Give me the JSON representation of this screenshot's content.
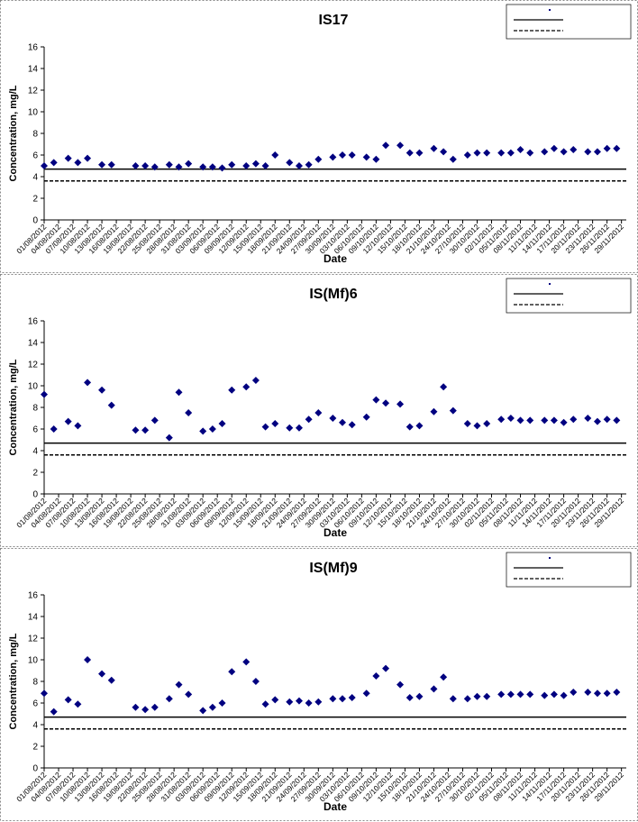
{
  "chart_data": [
    {
      "type": "scatter",
      "title": "IS17",
      "xlabel": "Date",
      "ylabel": "Concentration, mg/L",
      "marker": "diamond",
      "xlim": [
        "01/08/2012",
        "30/11/2012"
      ],
      "ylim": [
        0,
        16
      ],
      "yticks": [
        0,
        2,
        4,
        6,
        8,
        10,
        12,
        14,
        16
      ],
      "xticks": [
        "01/08/2012",
        "04/08/2012",
        "07/08/2012",
        "10/08/2012",
        "13/08/2012",
        "16/08/2012",
        "19/08/2012",
        "22/08/2012",
        "25/08/2012",
        "28/08/2012",
        "31/08/2012",
        "03/09/2012",
        "06/09/2012",
        "09/09/2012",
        "12/09/2012",
        "15/09/2012",
        "18/09/2012",
        "21/09/2012",
        "24/09/2012",
        "27/09/2012",
        "30/09/2012",
        "03/10/2012",
        "06/10/2012",
        "09/10/2012",
        "12/10/2012",
        "15/10/2012",
        "18/10/2012",
        "21/10/2012",
        "24/10/2012",
        "27/10/2012",
        "30/10/2012",
        "02/11/2012",
        "05/11/2012",
        "08/11/2012",
        "11/11/2012",
        "14/11/2012",
        "17/11/2012",
        "20/11/2012",
        "23/11/2012",
        "26/11/2012",
        "29/11/2012"
      ],
      "x": [
        "01/08/2012",
        "03/08/2012",
        "06/08/2012",
        "08/08/2012",
        "10/08/2012",
        "13/08/2012",
        "15/08/2012",
        "20/08/2012",
        "22/08/2012",
        "24/08/2012",
        "27/08/2012",
        "29/08/2012",
        "31/08/2012",
        "03/09/2012",
        "05/09/2012",
        "07/09/2012",
        "09/09/2012",
        "12/09/2012",
        "14/09/2012",
        "16/09/2012",
        "18/09/2012",
        "21/09/2012",
        "23/09/2012",
        "25/09/2012",
        "27/09/2012",
        "30/09/2012",
        "02/10/2012",
        "04/10/2012",
        "07/10/2012",
        "09/10/2012",
        "11/10/2012",
        "14/10/2012",
        "16/10/2012",
        "18/10/2012",
        "21/10/2012",
        "23/10/2012",
        "25/10/2012",
        "28/10/2012",
        "30/10/2012",
        "01/11/2012",
        "04/11/2012",
        "06/11/2012",
        "08/11/2012",
        "10/11/2012",
        "13/11/2012",
        "15/11/2012",
        "17/11/2012",
        "19/11/2012",
        "22/11/2012",
        "24/11/2012",
        "26/11/2012",
        "28/11/2012"
      ],
      "series": [
        {
          "color": "#000080",
          "values": [
            5.0,
            5.3,
            5.7,
            5.3,
            5.7,
            5.1,
            5.1,
            5.0,
            5.0,
            4.9,
            5.1,
            4.9,
            5.2,
            4.9,
            4.9,
            4.8,
            5.1,
            5.0,
            5.2,
            5.0,
            6.0,
            5.3,
            5.0,
            5.1,
            5.6,
            5.8,
            6.0,
            6.0,
            5.8,
            5.6,
            6.9,
            6.9,
            6.2,
            6.2,
            6.6,
            6.3,
            5.6,
            6.0,
            6.2,
            6.2,
            6.2,
            6.2,
            6.5,
            6.2,
            6.3,
            6.6,
            6.3,
            6.5,
            6.3,
            6.3,
            6.6,
            6.6
          ]
        }
      ],
      "reference_lines": [
        {
          "value": 4.7,
          "style": "solid",
          "color": "#000000"
        },
        {
          "value": 3.6,
          "style": "dashed",
          "color": "#000000"
        }
      ]
    },
    {
      "type": "scatter",
      "title": "IS(Mf)6",
      "xlabel": "Date",
      "ylabel": "Concentration, mg/L",
      "marker": "diamond",
      "xlim": [
        "01/08/2012",
        "30/11/2012"
      ],
      "ylim": [
        0,
        16
      ],
      "yticks": [
        0,
        2,
        4,
        6,
        8,
        10,
        12,
        14,
        16
      ],
      "xticks": [
        "01/08/2012",
        "04/08/2012",
        "07/08/2012",
        "10/08/2012",
        "13/08/2012",
        "16/08/2012",
        "19/08/2012",
        "22/08/2012",
        "25/08/2012",
        "28/08/2012",
        "31/08/2012",
        "03/09/2012",
        "06/09/2012",
        "09/09/2012",
        "12/09/2012",
        "15/09/2012",
        "18/09/2012",
        "21/09/2012",
        "24/09/2012",
        "27/09/2012",
        "30/09/2012",
        "03/10/2012",
        "06/10/2012",
        "09/10/2012",
        "12/10/2012",
        "15/10/2012",
        "18/10/2012",
        "21/10/2012",
        "24/10/2012",
        "27/10/2012",
        "30/10/2012",
        "02/11/2012",
        "05/11/2012",
        "08/11/2012",
        "11/11/2012",
        "14/11/2012",
        "17/11/2012",
        "20/11/2012",
        "23/11/2012",
        "26/11/2012",
        "29/11/2012"
      ],
      "x": [
        "01/08/2012",
        "03/08/2012",
        "06/08/2012",
        "08/08/2012",
        "10/08/2012",
        "13/08/2012",
        "15/08/2012",
        "20/08/2012",
        "22/08/2012",
        "24/08/2012",
        "27/08/2012",
        "29/08/2012",
        "31/08/2012",
        "03/09/2012",
        "05/09/2012",
        "07/09/2012",
        "09/09/2012",
        "12/09/2012",
        "14/09/2012",
        "16/09/2012",
        "18/09/2012",
        "21/09/2012",
        "23/09/2012",
        "25/09/2012",
        "27/09/2012",
        "30/09/2012",
        "02/10/2012",
        "04/10/2012",
        "07/10/2012",
        "09/10/2012",
        "11/10/2012",
        "14/10/2012",
        "16/10/2012",
        "18/10/2012",
        "21/10/2012",
        "23/10/2012",
        "25/10/2012",
        "28/10/2012",
        "30/10/2012",
        "01/11/2012",
        "04/11/2012",
        "06/11/2012",
        "08/11/2012",
        "10/11/2012",
        "13/11/2012",
        "15/11/2012",
        "17/11/2012",
        "19/11/2012",
        "22/11/2012",
        "24/11/2012",
        "26/11/2012",
        "28/11/2012"
      ],
      "series": [
        {
          "color": "#000080",
          "values": [
            9.2,
            6.0,
            6.7,
            6.3,
            10.3,
            9.6,
            8.2,
            5.9,
            5.9,
            6.8,
            5.2,
            9.4,
            7.5,
            5.8,
            6.0,
            6.5,
            9.6,
            9.9,
            10.5,
            6.2,
            6.5,
            6.1,
            6.1,
            6.9,
            7.5,
            7.0,
            6.6,
            6.4,
            7.1,
            8.7,
            8.4,
            8.3,
            6.2,
            6.3,
            7.6,
            9.9,
            7.7,
            6.5,
            6.3,
            6.5,
            6.9,
            7.0,
            6.8,
            6.8,
            6.8,
            6.8,
            6.6,
            6.9,
            7.0,
            6.7,
            6.9,
            6.8
          ]
        }
      ],
      "reference_lines": [
        {
          "value": 4.7,
          "style": "solid",
          "color": "#000000"
        },
        {
          "value": 3.6,
          "style": "dashed",
          "color": "#000000"
        }
      ]
    },
    {
      "type": "scatter",
      "title": "IS(Mf)9",
      "xlabel": "Date",
      "ylabel": "Concentration, mg/L",
      "marker": "diamond",
      "xlim": [
        "01/08/2012",
        "30/11/2012"
      ],
      "ylim": [
        0,
        16
      ],
      "yticks": [
        0,
        2,
        4,
        6,
        8,
        10,
        12,
        14,
        16
      ],
      "xticks": [
        "01/08/2012",
        "04/08/2012",
        "07/08/2012",
        "10/08/2012",
        "13/08/2012",
        "16/08/2012",
        "19/08/2012",
        "22/08/2012",
        "25/08/2012",
        "28/08/2012",
        "31/08/2012",
        "03/09/2012",
        "06/09/2012",
        "09/09/2012",
        "12/09/2012",
        "15/09/2012",
        "18/09/2012",
        "21/09/2012",
        "24/09/2012",
        "27/09/2012",
        "30/09/2012",
        "03/10/2012",
        "06/10/2012",
        "09/10/2012",
        "12/10/2012",
        "15/10/2012",
        "18/10/2012",
        "21/10/2012",
        "24/10/2012",
        "27/10/2012",
        "30/10/2012",
        "02/11/2012",
        "05/11/2012",
        "08/11/2012",
        "11/11/2012",
        "14/11/2012",
        "17/11/2012",
        "20/11/2012",
        "23/11/2012",
        "26/11/2012",
        "29/11/2012"
      ],
      "x": [
        "01/08/2012",
        "03/08/2012",
        "06/08/2012",
        "08/08/2012",
        "10/08/2012",
        "13/08/2012",
        "15/08/2012",
        "20/08/2012",
        "22/08/2012",
        "24/08/2012",
        "27/08/2012",
        "29/08/2012",
        "31/08/2012",
        "03/09/2012",
        "05/09/2012",
        "07/09/2012",
        "09/09/2012",
        "12/09/2012",
        "14/09/2012",
        "16/09/2012",
        "18/09/2012",
        "21/09/2012",
        "23/09/2012",
        "25/09/2012",
        "27/09/2012",
        "30/09/2012",
        "02/10/2012",
        "04/10/2012",
        "07/10/2012",
        "09/10/2012",
        "11/10/2012",
        "14/10/2012",
        "16/10/2012",
        "18/10/2012",
        "21/10/2012",
        "23/10/2012",
        "25/10/2012",
        "28/10/2012",
        "30/10/2012",
        "01/11/2012",
        "04/11/2012",
        "06/11/2012",
        "08/11/2012",
        "10/11/2012",
        "13/11/2012",
        "15/11/2012",
        "17/11/2012",
        "19/11/2012",
        "22/11/2012",
        "24/11/2012",
        "26/11/2012",
        "28/11/2012"
      ],
      "series": [
        {
          "color": "#000080",
          "values": [
            6.9,
            5.2,
            6.3,
            5.9,
            10.0,
            8.7,
            8.1,
            5.6,
            5.4,
            5.6,
            6.4,
            7.7,
            6.8,
            5.3,
            5.6,
            6.0,
            8.9,
            9.8,
            8.0,
            5.9,
            6.3,
            6.1,
            6.2,
            6.0,
            6.1,
            6.4,
            6.4,
            6.5,
            6.9,
            8.5,
            9.2,
            7.7,
            6.5,
            6.6,
            7.3,
            8.4,
            6.4,
            6.4,
            6.6,
            6.6,
            6.8,
            6.8,
            6.8,
            6.8,
            6.7,
            6.8,
            6.7,
            7.0,
            7.0,
            6.9,
            6.9,
            7.0
          ]
        }
      ],
      "reference_lines": [
        {
          "value": 4.7,
          "style": "solid",
          "color": "#000000"
        },
        {
          "value": 3.6,
          "style": "dashed",
          "color": "#000000"
        }
      ]
    }
  ]
}
